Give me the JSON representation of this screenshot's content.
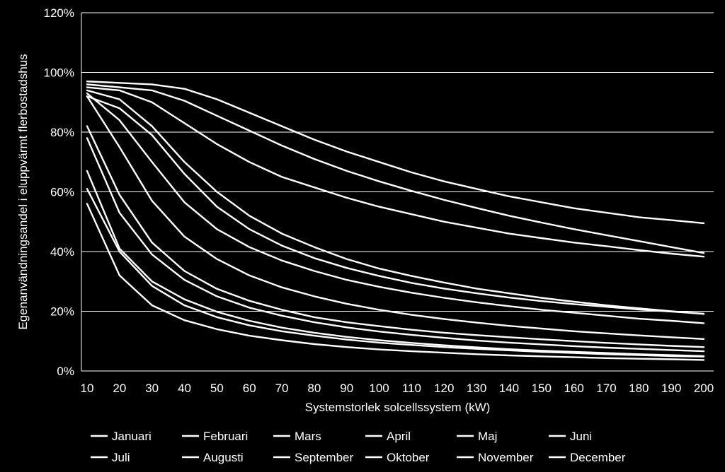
{
  "chart_data": {
    "type": "line",
    "xlabel": "Systemstorlek solcellssystem (kW)",
    "ylabel": "Egenanvändningsandel i eluppvärmt flerbostadshus",
    "x": [
      10,
      20,
      30,
      40,
      50,
      60,
      70,
      80,
      90,
      100,
      110,
      120,
      130,
      140,
      150,
      160,
      170,
      180,
      190,
      200
    ],
    "xlim": [
      10,
      200
    ],
    "ylim": [
      0,
      120
    ],
    "y_ticks": [
      "0%",
      "20%",
      "40%",
      "60%",
      "80%",
      "100%",
      "120%"
    ],
    "y_tick_values": [
      0,
      20,
      40,
      60,
      80,
      100,
      120
    ],
    "grid": "horizontal",
    "legend_position": "bottom",
    "line_color": "#ffffff",
    "series": [
      {
        "name": "Januari",
        "values": [
          97,
          96.5,
          96,
          94.5,
          91,
          86.5,
          82,
          77.5,
          73.5,
          70,
          66.5,
          63.5,
          61,
          58.5,
          56.5,
          54.5,
          53,
          51.5,
          50.5,
          49.5
        ]
      },
      {
        "name": "Februari",
        "values": [
          95,
          94,
          90,
          83,
          76,
          70,
          65,
          61.5,
          58,
          55,
          52.5,
          50,
          48,
          46,
          44.5,
          43,
          41.8,
          40.5,
          39.3,
          38.3
        ]
      },
      {
        "name": "Mars",
        "values": [
          93,
          84,
          70,
          56.5,
          47.5,
          41.5,
          37,
          33.5,
          30.5,
          28.2,
          26.2,
          24.5,
          23,
          21.7,
          20.5,
          19.5,
          18.5,
          17.5,
          16.8,
          16
        ]
      },
      {
        "name": "April",
        "values": [
          82,
          59,
          43,
          33.5,
          27.5,
          23.5,
          20.5,
          18,
          16.3,
          15,
          13.8,
          12.8,
          12,
          11.3,
          10.6,
          10,
          9.4,
          8.9,
          8.4,
          8
        ]
      },
      {
        "name": "Maj",
        "values": [
          61,
          40,
          28.5,
          22,
          18,
          15.3,
          13.3,
          11.8,
          10.5,
          9.5,
          8.7,
          8,
          7.4,
          6.9,
          6.4,
          6,
          5.6,
          5.3,
          5,
          4.8
        ]
      },
      {
        "name": "Juni",
        "values": [
          56,
          32,
          22,
          17,
          14,
          11.8,
          10.3,
          9,
          8,
          7.2,
          6.6,
          6.1,
          5.6,
          5.2,
          4.9,
          4.6,
          4.3,
          4.1,
          3.9,
          3.7
        ]
      },
      {
        "name": "Juli",
        "values": [
          67,
          41,
          30,
          24,
          19.8,
          16.8,
          14.5,
          12.8,
          11.4,
          10.3,
          9.4,
          8.6,
          7.9,
          7.3,
          6.8,
          6.4,
          6,
          5.6,
          5.3,
          5
        ]
      },
      {
        "name": "Augusti",
        "values": [
          78,
          53,
          39,
          30.5,
          25,
          21.2,
          18.5,
          16.3,
          14.6,
          13.2,
          12.1,
          11.1,
          10.2,
          9.5,
          8.9,
          8.3,
          7.8,
          7.4,
          7,
          6.6
        ]
      },
      {
        "name": "September",
        "values": [
          92,
          75,
          57,
          45,
          37.5,
          32,
          28,
          25,
          22.5,
          20.5,
          18.8,
          17.4,
          16.2,
          15.1,
          14.2,
          13.3,
          12.6,
          11.9,
          11.3,
          10.7
        ]
      },
      {
        "name": "Oktober",
        "values": [
          94,
          91,
          82,
          70,
          60,
          52,
          46,
          41.5,
          37.5,
          34.3,
          31.8,
          29.6,
          27.6,
          26,
          24.5,
          23.2,
          22,
          21,
          20,
          19.1
        ]
      },
      {
        "name": "November",
        "values": [
          96,
          95,
          94,
          90.5,
          85.5,
          80.5,
          75.5,
          71,
          67,
          63.5,
          60.3,
          57.3,
          54.6,
          52,
          49.7,
          47.5,
          45.5,
          43.5,
          41.5,
          39.5
        ]
      },
      {
        "name": "December",
        "values": [
          92,
          88,
          79,
          66,
          55,
          47.5,
          42,
          37.8,
          34.5,
          31.8,
          29.5,
          27.6,
          26,
          24.6,
          23.4,
          22.4,
          21.5,
          20.6,
          19.9,
          19.2
        ]
      }
    ]
  }
}
